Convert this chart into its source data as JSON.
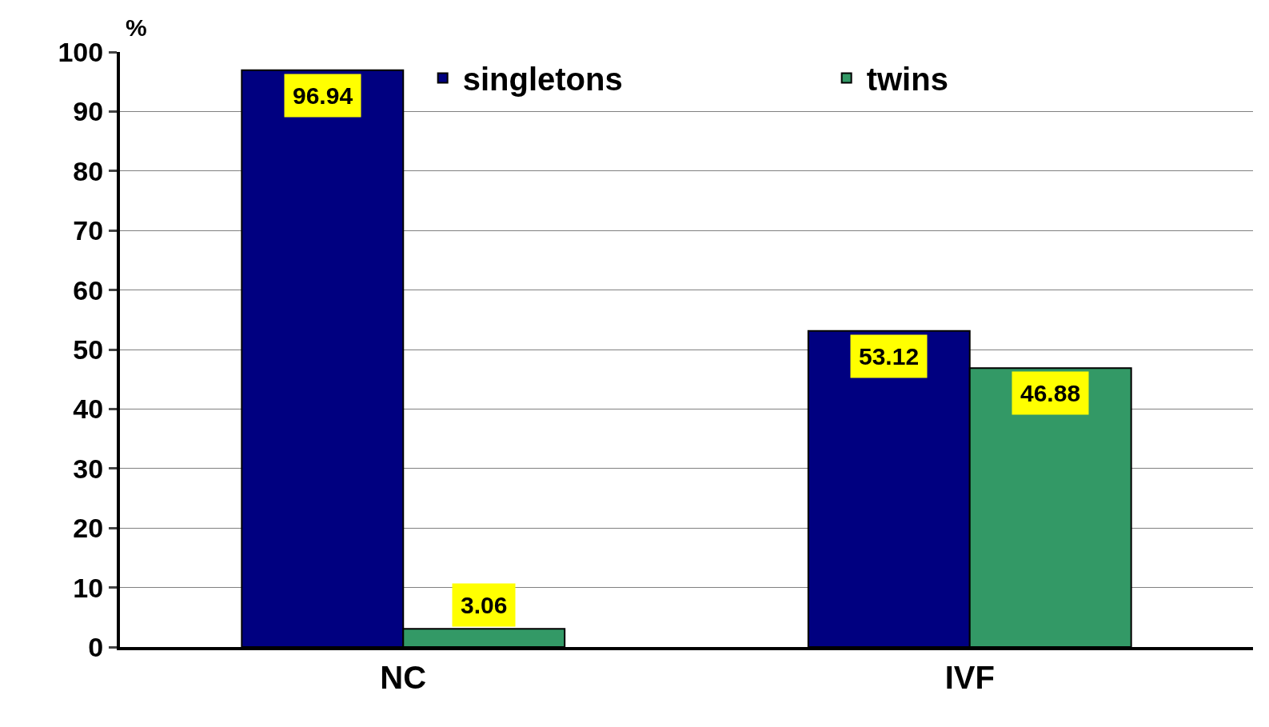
{
  "chart_data": {
    "type": "bar",
    "ylabel": "%",
    "categories": [
      "NC",
      "IVF"
    ],
    "series": [
      {
        "name": "singletons",
        "color": "#000080",
        "values": [
          96.94,
          53.12
        ]
      },
      {
        "name": "twins",
        "color": "#339966",
        "values": [
          3.06,
          46.88
        ]
      }
    ],
    "ylim": [
      0,
      100
    ],
    "yticks": [
      0,
      10,
      20,
      30,
      40,
      50,
      60,
      70,
      80,
      90,
      100
    ],
    "grid": "y",
    "legend": "top right",
    "data_labels": true
  }
}
